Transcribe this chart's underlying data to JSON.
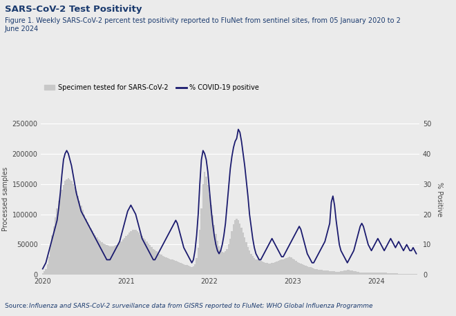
{
  "title": "SARS-CoV-2 Test Positivity",
  "subtitle": "Figure 1. Weekly SARS-CoV-2 percent test positivity reported to FluNet from sentinel sites, from 05 January 2020 to 2\nJune 2024",
  "source_text": "Source: ",
  "source_italic": "Influenza and SARS-CoV-2 surveillance data from GISRS reported to FluNet; WHO Global Influenza Programme",
  "ylabel_left": "Processed samples",
  "ylabel_right": "% Positive",
  "legend_bar": "Specimen tested for SARS-CoV-2",
  "legend_line": "% COVID-19 positive",
  "bar_color": "#c8c8c8",
  "line_color": "#1a1a6e",
  "background_color": "#ebebeb",
  "title_color": "#1a3a6e",
  "subtitle_color": "#1a3a6e",
  "source_color": "#1a3a6e",
  "ylim_left": [
    0,
    250000
  ],
  "ylim_right": [
    0,
    50
  ],
  "yticks_left": [
    0,
    50000,
    100000,
    150000,
    200000,
    250000
  ],
  "yticks_right": [
    0,
    10,
    20,
    30,
    40,
    50
  ],
  "bar_heights": [
    3000,
    6000,
    10000,
    18000,
    30000,
    48000,
    65000,
    80000,
    95000,
    110000,
    122000,
    132000,
    140000,
    148000,
    155000,
    158000,
    160000,
    158000,
    155000,
    150000,
    145000,
    138000,
    130000,
    122000,
    114000,
    107000,
    100000,
    93000,
    87000,
    82000,
    77000,
    73000,
    69000,
    65000,
    62000,
    59000,
    56000,
    54000,
    52000,
    50000,
    49000,
    48000,
    47000,
    47000,
    47000,
    48000,
    49000,
    51000,
    53000,
    55000,
    58000,
    61000,
    64000,
    67000,
    70000,
    72000,
    74000,
    75000,
    74000,
    72000,
    70000,
    67000,
    64000,
    61000,
    58000,
    55000,
    52000,
    49000,
    46000,
    43000,
    41000,
    39000,
    37000,
    35000,
    33000,
    31000,
    30000,
    29000,
    28000,
    27000,
    26000,
    25000,
    24000,
    23000,
    22000,
    21000,
    20000,
    19000,
    18000,
    17000,
    16000,
    15000,
    14000,
    13500,
    14000,
    18000,
    28000,
    45000,
    75000,
    110000,
    150000,
    170000,
    162000,
    148000,
    132000,
    115000,
    98000,
    82000,
    68000,
    56000,
    47000,
    41000,
    38000,
    37000,
    39000,
    43000,
    50000,
    60000,
    72000,
    83000,
    90000,
    93000,
    90000,
    85000,
    78000,
    70000,
    62000,
    54000,
    46000,
    40000,
    35000,
    31000,
    28000,
    26000,
    25000,
    24000,
    23000,
    22000,
    21000,
    20000,
    19500,
    19000,
    19000,
    19500,
    20000,
    21000,
    22000,
    23000,
    24000,
    25000,
    26000,
    27000,
    28000,
    29000,
    30000,
    29000,
    27000,
    25000,
    23000,
    21000,
    19500,
    18500,
    17500,
    16500,
    15500,
    14500,
    13500,
    12500,
    11500,
    10500,
    9800,
    9200,
    8700,
    8300,
    8000,
    7700,
    7400,
    7100,
    6800,
    6500,
    6200,
    5900,
    5700,
    5500,
    5500,
    5600,
    6000,
    6500,
    7000,
    7500,
    8000,
    8200,
    7800,
    7300,
    6700,
    6000,
    5400,
    4900,
    4500,
    4200,
    4000,
    3800,
    3700,
    3600,
    3500,
    3500,
    3600,
    3700,
    3800,
    3900,
    4000,
    4000,
    3900,
    3700,
    3500,
    3300,
    3100,
    2900,
    2700,
    2500,
    2400,
    2300,
    2200,
    2100,
    2000,
    1900,
    1800,
    1700,
    1600,
    1500,
    1450,
    1400,
    1350,
    1300
  ],
  "line_values": [
    2,
    3,
    4,
    6,
    8,
    10,
    12,
    14,
    16,
    18,
    22,
    27,
    33,
    38,
    40,
    41,
    40,
    38,
    36,
    33,
    30,
    27,
    25,
    23,
    21,
    20,
    19,
    18,
    17,
    16,
    15,
    14,
    13,
    12,
    11,
    10,
    9,
    8,
    7,
    6,
    5,
    5,
    5,
    6,
    7,
    8,
    9,
    10,
    11,
    13,
    15,
    17,
    19,
    21,
    22,
    23,
    22,
    21,
    20,
    18,
    16,
    14,
    12,
    11,
    10,
    9,
    8,
    7,
    6,
    5,
    5,
    6,
    7,
    8,
    9,
    10,
    11,
    12,
    13,
    14,
    15,
    16,
    17,
    18,
    17,
    15,
    13,
    11,
    9,
    8,
    7,
    6,
    5,
    4,
    5,
    8,
    13,
    20,
    30,
    38,
    41,
    40,
    38,
    34,
    28,
    22,
    17,
    13,
    10,
    8,
    7,
    8,
    10,
    13,
    17,
    23,
    29,
    35,
    39,
    42,
    44,
    45,
    48,
    47,
    44,
    40,
    36,
    31,
    26,
    20,
    16,
    12,
    9,
    7,
    6,
    5,
    5,
    6,
    7,
    8,
    9,
    10,
    11,
    12,
    11,
    10,
    9,
    8,
    7,
    6,
    6,
    7,
    8,
    9,
    10,
    11,
    12,
    13,
    14,
    15,
    16,
    15,
    13,
    11,
    9,
    7,
    6,
    5,
    4,
    4,
    5,
    6,
    7,
    8,
    9,
    10,
    11,
    13,
    15,
    17,
    24,
    26,
    23,
    18,
    14,
    10,
    8,
    7,
    6,
    5,
    4,
    5,
    6,
    7,
    8,
    10,
    12,
    14,
    16,
    17,
    16,
    14,
    12,
    10,
    9,
    8,
    9,
    10,
    11,
    12,
    11,
    10,
    9,
    8,
    9,
    10,
    11,
    12,
    11,
    10,
    9,
    10,
    11,
    10,
    9,
    8,
    9,
    10,
    9,
    8,
    8,
    9,
    8,
    7
  ],
  "xtick_positions": [
    0,
    52,
    104,
    156,
    208
  ],
  "xtick_labels": [
    "2020",
    "2021",
    "2022",
    "2023",
    "2024"
  ]
}
